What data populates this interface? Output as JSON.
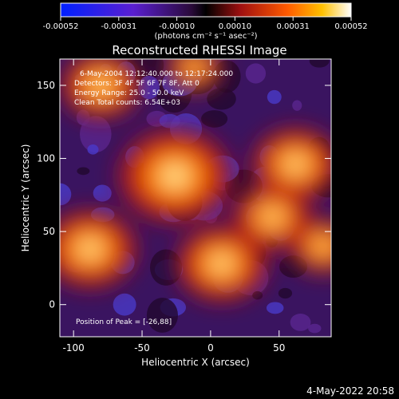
{
  "chart_data": {
    "type": "heatmap",
    "title": "Reconstructed RHESSI Image",
    "xlabel": "Heliocentric X (arcsec)",
    "ylabel": "Heliocentric Y (arcsec)",
    "xlim": [
      -110,
      88
    ],
    "ylim": [
      -22,
      168
    ],
    "xticks": [
      -100,
      -50,
      0,
      50
    ],
    "yticks": [
      0,
      50,
      100,
      150
    ],
    "colorbar": {
      "min": -0.00052,
      "max": 0.00052,
      "ticks": [
        "-0.00052",
        "-0.00031",
        "-0.00010",
        "0.00010",
        "0.00031",
        "0.00052"
      ],
      "units_label": "(photons cm⁻² s⁻¹ asec⁻²)"
    },
    "annotations": {
      "time": "6-May-2004 12:12:40.000 to 12:17:24.000",
      "detectors": "Detectors: 3F 4F 5F 6F 7F 8F, Att 0",
      "energy": "Energy Range: 25.0 - 50.0 keV",
      "clean": "Clean     Total counts: 6.54E+03",
      "peak": "Position of Peak = [-26,88]"
    },
    "sources": [
      {
        "x": -26,
        "y": 88,
        "intensity": 1.0
      },
      {
        "x": -88,
        "y": 38,
        "intensity": 0.78
      },
      {
        "x": 8,
        "y": 28,
        "intensity": 0.75
      },
      {
        "x": 62,
        "y": 96,
        "intensity": 0.7
      },
      {
        "x": -80,
        "y": 150,
        "intensity": 0.62
      },
      {
        "x": 45,
        "y": 60,
        "intensity": 0.6
      },
      {
        "x": 82,
        "y": 40,
        "intensity": 0.45
      },
      {
        "x": -12,
        "y": 162,
        "intensity": 0.35
      }
    ],
    "grid": false
  },
  "footer": {
    "timestamp": "4-May-2022 20:58"
  }
}
